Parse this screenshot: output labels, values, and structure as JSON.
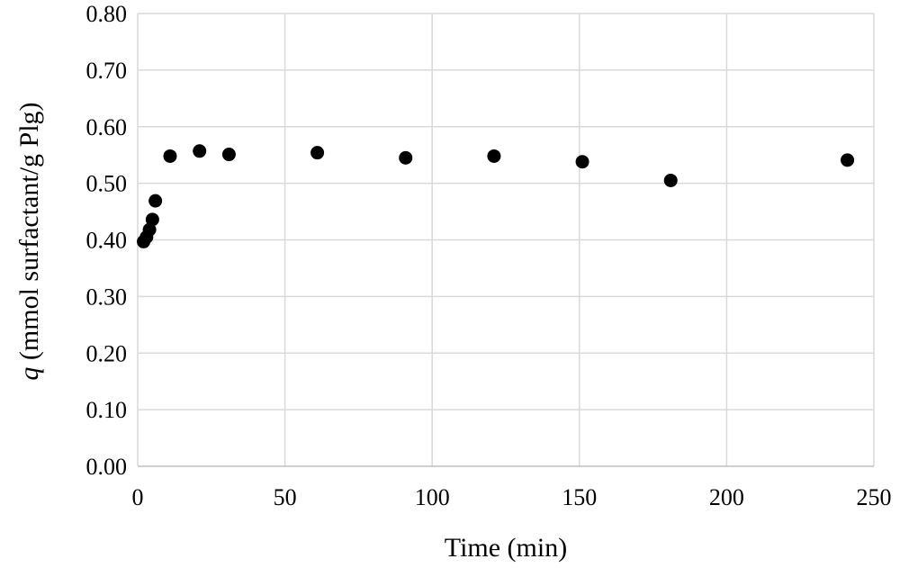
{
  "chart_data": {
    "type": "scatter",
    "xlabel": "Time (min)",
    "ylabel_var": "q",
    "ylabel_rest": " (mmol surfactant/g Plg)",
    "xlim": [
      0,
      250
    ],
    "ylim": [
      0,
      0.8
    ],
    "x_ticks": [
      "0",
      "50",
      "100",
      "150",
      "200",
      "250"
    ],
    "y_ticks": [
      "0.00",
      "0.10",
      "0.20",
      "0.30",
      "0.40",
      "0.50",
      "0.60",
      "0.70",
      "0.80"
    ],
    "grid": true,
    "marker_color": "#000000",
    "points": [
      {
        "x": 2,
        "y": 0.397
      },
      {
        "x": 3,
        "y": 0.405
      },
      {
        "x": 4,
        "y": 0.418
      },
      {
        "x": 5,
        "y": 0.436
      },
      {
        "x": 6,
        "y": 0.469
      },
      {
        "x": 11,
        "y": 0.548
      },
      {
        "x": 21,
        "y": 0.557
      },
      {
        "x": 31,
        "y": 0.551
      },
      {
        "x": 61,
        "y": 0.554
      },
      {
        "x": 91,
        "y": 0.545
      },
      {
        "x": 121,
        "y": 0.548
      },
      {
        "x": 151,
        "y": 0.538
      },
      {
        "x": 181,
        "y": 0.505
      },
      {
        "x": 241,
        "y": 0.541
      }
    ]
  }
}
